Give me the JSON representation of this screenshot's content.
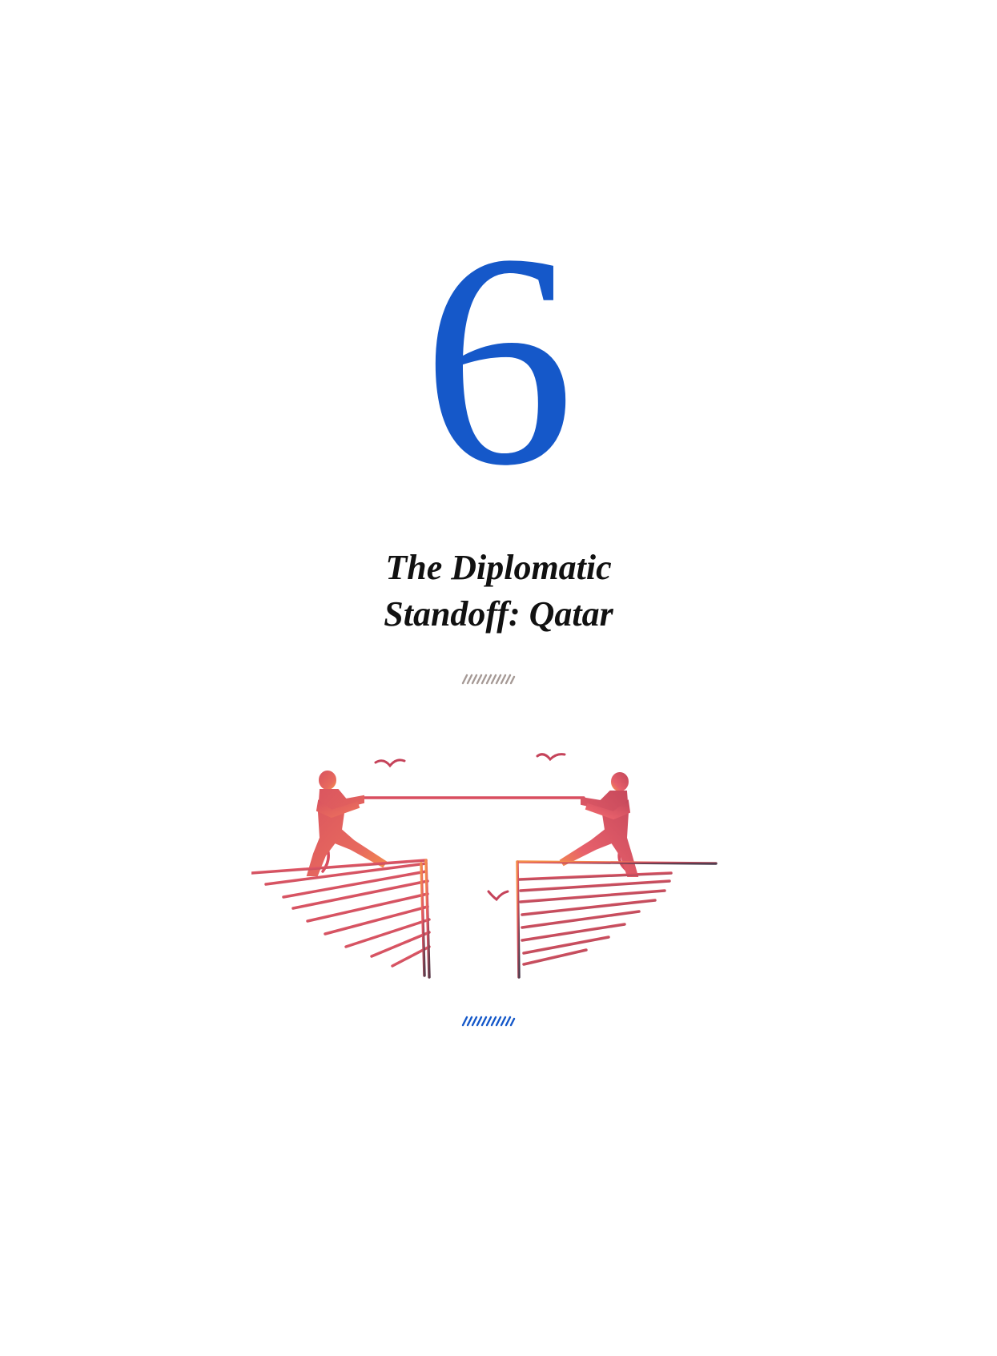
{
  "chapter": {
    "number": "6",
    "title_line1": "The Diplomatic",
    "title_line2": "Standoff: Qatar"
  },
  "colors": {
    "accent_blue": "#1558c9",
    "divider_gray": "#a69a96",
    "sketch_red": "#e0525f",
    "sketch_orange": "#f4904a",
    "sketch_dark": "#5a3b4a"
  },
  "illustration": {
    "icon": "tug-of-war-cliff-illustration"
  }
}
